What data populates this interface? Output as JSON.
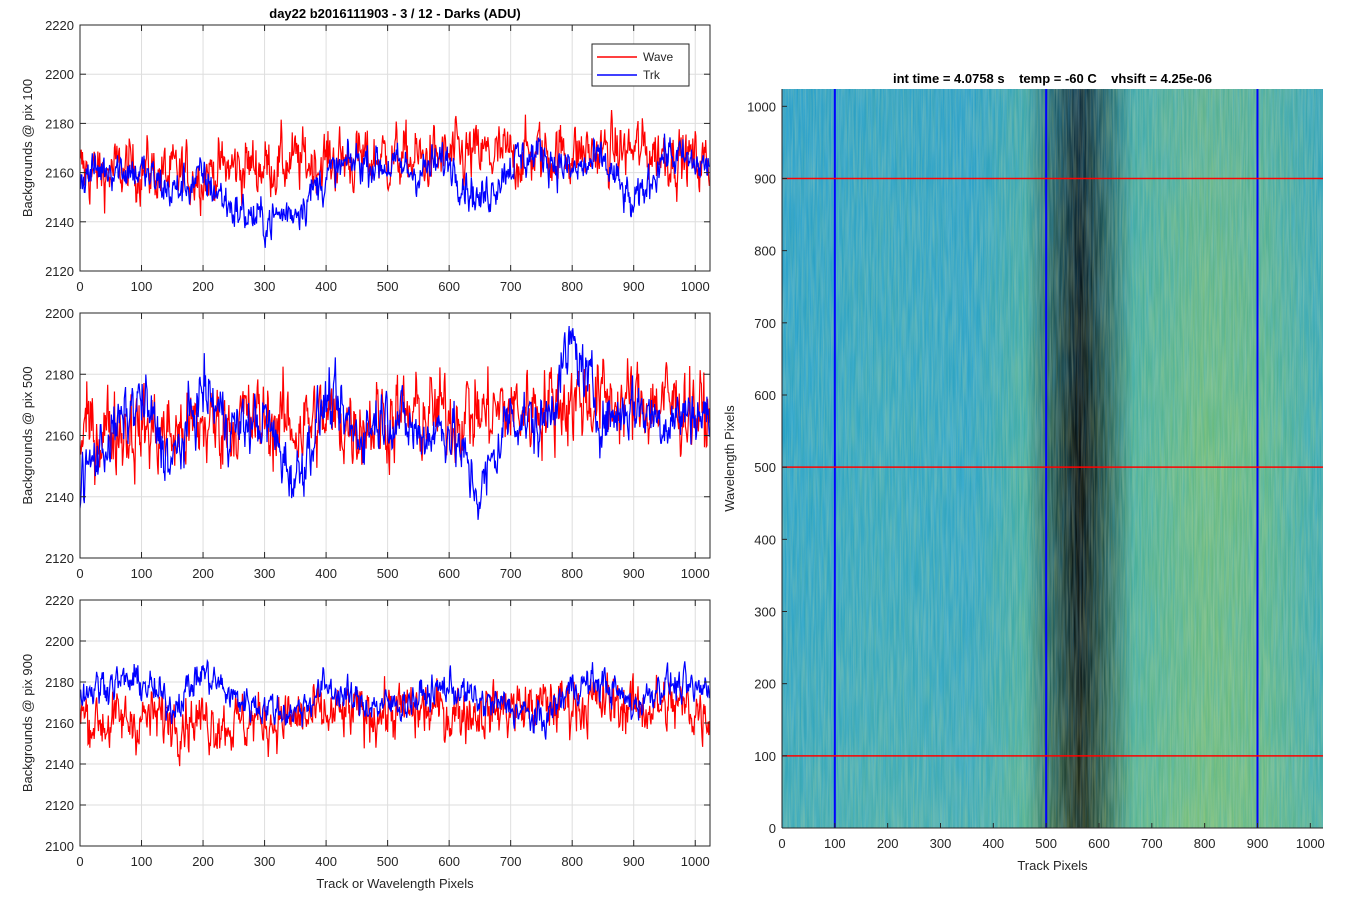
{
  "chart_data": [
    {
      "type": "line",
      "title": "day22 b2016111903 - 3 / 12 - Darks (ADU)",
      "xlabel": "",
      "ylabel": "Backgrounds @ pix 100",
      "xlim": [
        0,
        1024
      ],
      "ylim": [
        2120,
        2220
      ],
      "xticks": [
        0,
        100,
        200,
        300,
        400,
        500,
        600,
        700,
        800,
        900,
        1000
      ],
      "yticks": [
        2120,
        2140,
        2160,
        2180,
        2200,
        2220
      ],
      "grid": true,
      "legend": "top-right",
      "series": [
        {
          "name": "Wave",
          "color": "#ff0000",
          "x": [
            0,
            50,
            100,
            150,
            200,
            250,
            300,
            350,
            400,
            450,
            500,
            550,
            600,
            650,
            700,
            750,
            800,
            850,
            900,
            950,
            1000,
            1023
          ],
          "values": [
            2160,
            2160,
            2162,
            2158,
            2160,
            2162,
            2163,
            2164,
            2165,
            2165,
            2166,
            2165,
            2166,
            2167,
            2166,
            2168,
            2168,
            2168,
            2169,
            2168,
            2165,
            2163
          ]
        },
        {
          "name": "Trk",
          "color": "#0000ff",
          "x": [
            0,
            50,
            100,
            150,
            200,
            250,
            300,
            350,
            400,
            450,
            500,
            550,
            600,
            650,
            700,
            750,
            800,
            850,
            900,
            950,
            1000,
            1023
          ],
          "values": [
            2158,
            2163,
            2160,
            2152,
            2158,
            2145,
            2140,
            2145,
            2158,
            2165,
            2163,
            2160,
            2165,
            2148,
            2164,
            2168,
            2160,
            2165,
            2145,
            2168,
            2163,
            2162
          ]
        }
      ]
    },
    {
      "type": "line",
      "title": "",
      "xlabel": "",
      "ylabel": "Backgrounds @ pix 500",
      "xlim": [
        0,
        1024
      ],
      "ylim": [
        2120,
        2200
      ],
      "xticks": [
        0,
        100,
        200,
        300,
        400,
        500,
        600,
        700,
        800,
        900,
        1000
      ],
      "yticks": [
        2120,
        2140,
        2160,
        2180,
        2200
      ],
      "grid": true,
      "series": [
        {
          "name": "Wave",
          "color": "#ff0000",
          "x": [
            0,
            50,
            100,
            150,
            200,
            250,
            300,
            350,
            400,
            450,
            500,
            550,
            600,
            650,
            700,
            750,
            800,
            850,
            900,
            950,
            1000,
            1023
          ],
          "values": [
            2160,
            2163,
            2162,
            2160,
            2163,
            2165,
            2165,
            2163,
            2165,
            2164,
            2166,
            2166,
            2167,
            2167,
            2168,
            2170,
            2172,
            2172,
            2170,
            2171,
            2168,
            2165
          ]
        },
        {
          "name": "Trk",
          "color": "#0000ff",
          "x": [
            0,
            50,
            100,
            150,
            200,
            250,
            300,
            350,
            400,
            450,
            500,
            550,
            600,
            650,
            700,
            750,
            800,
            850,
            900,
            950,
            1000,
            1023
          ],
          "values": [
            2145,
            2160,
            2172,
            2150,
            2175,
            2162,
            2165,
            2145,
            2172,
            2160,
            2168,
            2160,
            2163,
            2140,
            2168,
            2162,
            2190,
            2165,
            2170,
            2165,
            2168,
            2165
          ]
        }
      ]
    },
    {
      "type": "line",
      "title": "",
      "xlabel": "Track or Wavelength Pixels",
      "ylabel": "Backgrounds @ pix 900",
      "xlim": [
        0,
        1024
      ],
      "ylim": [
        2100,
        2220
      ],
      "xticks": [
        0,
        100,
        200,
        300,
        400,
        500,
        600,
        700,
        800,
        900,
        1000
      ],
      "yticks": [
        2100,
        2120,
        2140,
        2160,
        2180,
        2200,
        2220
      ],
      "grid": true,
      "series": [
        {
          "name": "Wave",
          "color": "#ff0000",
          "x": [
            0,
            50,
            100,
            150,
            200,
            250,
            300,
            350,
            400,
            450,
            500,
            550,
            600,
            650,
            700,
            750,
            800,
            850,
            900,
            950,
            1000,
            1023
          ],
          "values": [
            2163,
            2160,
            2162,
            2163,
            2162,
            2160,
            2161,
            2162,
            2163,
            2165,
            2165,
            2166,
            2165,
            2166,
            2167,
            2168,
            2170,
            2170,
            2168,
            2168,
            2167,
            2165
          ]
        },
        {
          "name": "Trk",
          "color": "#0000ff",
          "x": [
            0,
            50,
            100,
            150,
            200,
            250,
            300,
            350,
            400,
            450,
            500,
            550,
            600,
            650,
            700,
            750,
            800,
            850,
            900,
            950,
            1000,
            1023
          ],
          "values": [
            2175,
            2180,
            2180,
            2168,
            2185,
            2172,
            2168,
            2165,
            2178,
            2170,
            2168,
            2172,
            2178,
            2170,
            2168,
            2160,
            2178,
            2180,
            2168,
            2180,
            2175,
            2178
          ]
        }
      ]
    },
    {
      "type": "heatmap",
      "title": "int time = 4.0758 s    temp = -60 C    vhsift = 4.25e-06",
      "xlabel": "Track Pixels",
      "ylabel": "Wavelength Pixels",
      "xlim": [
        0,
        1024
      ],
      "ylim": [
        0,
        1024
      ],
      "xticks": [
        0,
        100,
        200,
        300,
        400,
        500,
        600,
        700,
        800,
        900,
        1000
      ],
      "yticks": [
        0,
        100,
        200,
        300,
        400,
        500,
        600,
        700,
        800,
        900,
        1000
      ],
      "colormap": "parula",
      "vertical_markers": {
        "color": "#0000ff",
        "x": [
          100,
          500,
          900
        ]
      },
      "horizontal_markers": {
        "color": "#ff0000",
        "y": [
          100,
          500,
          900
        ]
      }
    }
  ]
}
